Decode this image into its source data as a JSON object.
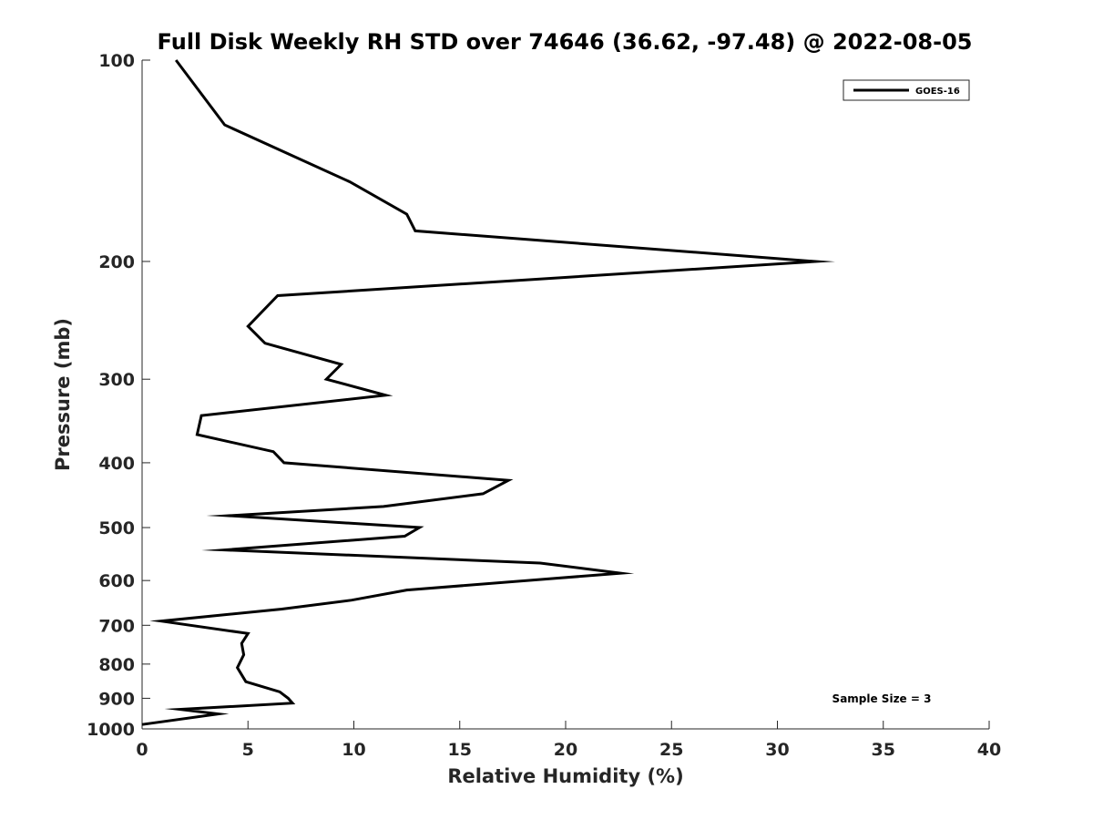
{
  "chart_data": {
    "type": "line",
    "title": "Full Disk Weekly RH STD over 74646 (36.62, -97.48) @ 2022-08-05",
    "xlabel": "Relative Humidity (%)",
    "ylabel": "Pressure (mb)",
    "xlim": [
      0,
      40
    ],
    "ylim": [
      100,
      1000
    ],
    "y_scale": "log",
    "y_reversed": true,
    "grid": false,
    "legend_position": "top-right",
    "x_ticks": [
      0,
      5,
      10,
      15,
      20,
      25,
      30,
      35,
      40
    ],
    "x_tick_labels": [
      "0",
      "5",
      "10",
      "15",
      "20",
      "25",
      "30",
      "35",
      "40"
    ],
    "y_ticks": [
      100,
      200,
      300,
      400,
      500,
      600,
      700,
      800,
      900,
      1000
    ],
    "y_tick_labels": [
      "100",
      "200",
      "300",
      "400",
      "500",
      "600",
      "700",
      "800",
      "900",
      "1000"
    ],
    "series": [
      {
        "name": "GOES-16",
        "color": "#000000",
        "points": [
          {
            "x": 1.6,
            "p": 100
          },
          {
            "x": 3.9,
            "p": 125
          },
          {
            "x": 9.8,
            "p": 152
          },
          {
            "x": 12.5,
            "p": 170
          },
          {
            "x": 12.9,
            "p": 180
          },
          {
            "x": 31.8,
            "p": 200
          },
          {
            "x": 6.4,
            "p": 225
          },
          {
            "x": 5.0,
            "p": 250
          },
          {
            "x": 5.8,
            "p": 265
          },
          {
            "x": 9.4,
            "p": 285
          },
          {
            "x": 8.7,
            "p": 300
          },
          {
            "x": 11.5,
            "p": 317
          },
          {
            "x": 2.8,
            "p": 340
          },
          {
            "x": 2.6,
            "p": 363
          },
          {
            "x": 6.2,
            "p": 385
          },
          {
            "x": 6.7,
            "p": 400
          },
          {
            "x": 17.3,
            "p": 425
          },
          {
            "x": 16.1,
            "p": 445
          },
          {
            "x": 11.4,
            "p": 465
          },
          {
            "x": 4.1,
            "p": 480
          },
          {
            "x": 13.1,
            "p": 500
          },
          {
            "x": 12.4,
            "p": 515
          },
          {
            "x": 3.9,
            "p": 540
          },
          {
            "x": 18.8,
            "p": 565
          },
          {
            "x": 22.6,
            "p": 585
          },
          {
            "x": 12.5,
            "p": 620
          },
          {
            "x": 9.9,
            "p": 642
          },
          {
            "x": 6.6,
            "p": 662
          },
          {
            "x": 0.9,
            "p": 690
          },
          {
            "x": 5.0,
            "p": 720
          },
          {
            "x": 4.7,
            "p": 745
          },
          {
            "x": 4.8,
            "p": 775
          },
          {
            "x": 4.5,
            "p": 810
          },
          {
            "x": 4.9,
            "p": 850
          },
          {
            "x": 6.5,
            "p": 880
          },
          {
            "x": 6.9,
            "p": 900
          },
          {
            "x": 7.1,
            "p": 915
          },
          {
            "x": 1.8,
            "p": 935
          },
          {
            "x": 3.6,
            "p": 950
          },
          {
            "x": 0.0,
            "p": 985
          }
        ]
      }
    ],
    "annotations": [
      {
        "text": "Sample Size = 3",
        "position": "bottom-right"
      }
    ]
  }
}
